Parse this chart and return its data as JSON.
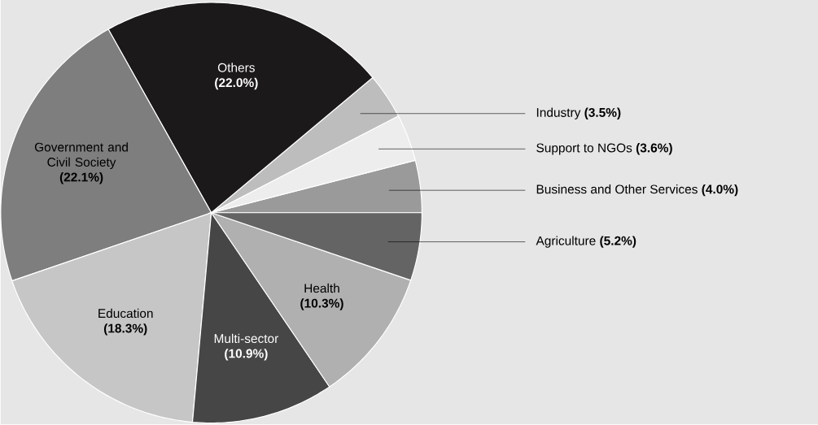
{
  "chart_data": {
    "type": "pie",
    "categories": [
      "Business and Other Services",
      "Support to NGOs",
      "Industry",
      "Others",
      "Government and Civil Society",
      "Education",
      "Multi-sector",
      "Health",
      "Agriculture"
    ],
    "values": [
      4.0,
      3.6,
      3.5,
      22.0,
      22.1,
      18.3,
      10.9,
      10.3,
      5.2
    ],
    "value_labels": [
      "(4.0%)",
      "(3.6%)",
      "(3.5%)",
      "(22.0%)",
      "(22.1%)",
      "(18.3%)",
      "(10.9%)",
      "(10.3%)",
      "(5.2%)"
    ],
    "colors": [
      "#9a9a9a",
      "#ededed",
      "#bdbdbd",
      "#1c191a",
      "#7e7e7e",
      "#c6c6c6",
      "#464646",
      "#b0b0b0",
      "#646464"
    ]
  }
}
